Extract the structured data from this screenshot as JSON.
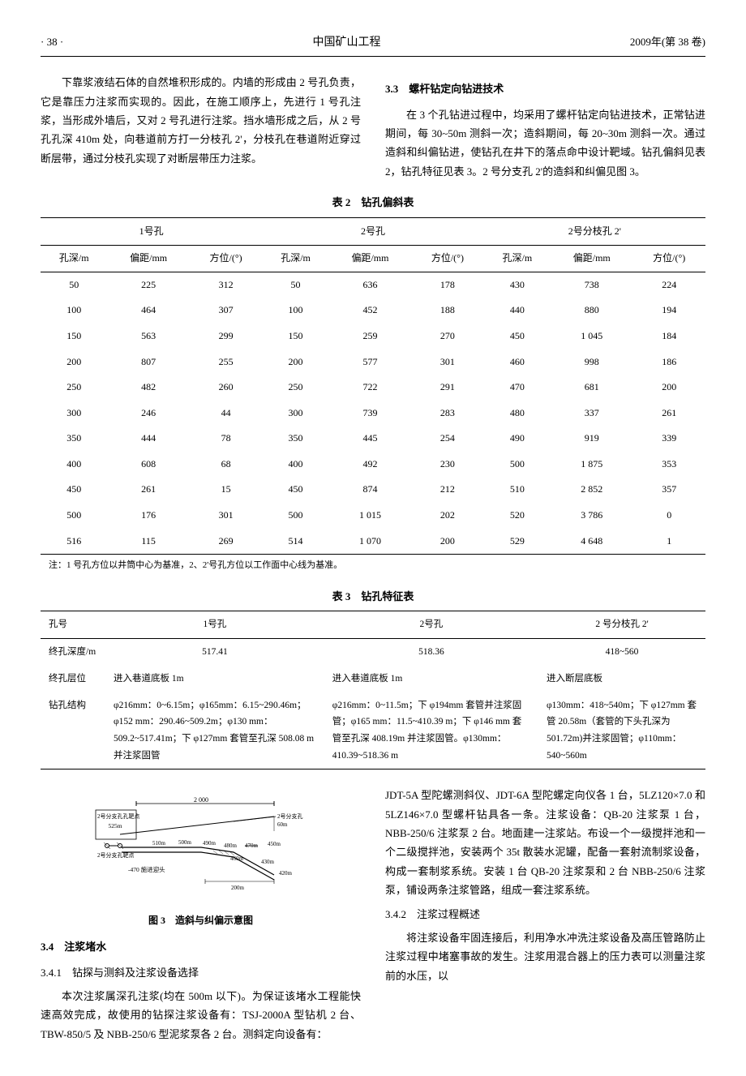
{
  "header": {
    "page_num": "· 38 ·",
    "journal": "中国矿山工程",
    "issue": "2009年(第 38 卷)"
  },
  "para_left": "下靠浆液结石体的自然堆积形成的。内墙的形成由 2 号孔负责，它是靠压力注浆而实现的。因此，在施工顺序上，先进行 1 号孔注浆，当形成外墙后，又对 2 号孔进行注浆。挡水墙形成之后，从 2 号孔孔深 410m 处，向巷道前方打一分枝孔 2'，分枝孔在巷道附近穿过断层带，通过分枝孔实现了对断层带压力注浆。",
  "sec33_title": "3.3　螺杆钻定向钻进技术",
  "para_right": "在 3 个孔钻进过程中，均采用了螺杆钻定向钻进技术，正常钻进期间，每 30~50m 测斜一次；造斜期间，每 20~30m 测斜一次。通过造斜和纠偏钻进，使钻孔在井下的落点命中设计靶域。钻孔偏斜见表 2，钻孔特征见表 3。2 号分支孔 2'的造斜和纠偏见图 3。",
  "table2": {
    "title": "表 2　钻孔偏斜表",
    "groups": [
      "1号孔",
      "2号孔",
      "2号分枝孔 2'"
    ],
    "subheaders": [
      "孔深/m",
      "偏距/mm",
      "方位/(°)",
      "孔深/m",
      "偏距/mm",
      "方位/(°)",
      "孔深/m",
      "偏距/mm",
      "方位/(°)"
    ],
    "rows": [
      [
        "50",
        "225",
        "312",
        "50",
        "636",
        "178",
        "430",
        "738",
        "224"
      ],
      [
        "100",
        "464",
        "307",
        "100",
        "452",
        "188",
        "440",
        "880",
        "194"
      ],
      [
        "150",
        "563",
        "299",
        "150",
        "259",
        "270",
        "450",
        "1 045",
        "184"
      ],
      [
        "200",
        "807",
        "255",
        "200",
        "577",
        "301",
        "460",
        "998",
        "186"
      ],
      [
        "250",
        "482",
        "260",
        "250",
        "722",
        "291",
        "470",
        "681",
        "200"
      ],
      [
        "300",
        "246",
        "44",
        "300",
        "739",
        "283",
        "480",
        "337",
        "261"
      ],
      [
        "350",
        "444",
        "78",
        "350",
        "445",
        "254",
        "490",
        "919",
        "339"
      ],
      [
        "400",
        "608",
        "68",
        "400",
        "492",
        "230",
        "500",
        "1 875",
        "353"
      ],
      [
        "450",
        "261",
        "15",
        "450",
        "874",
        "212",
        "510",
        "2 852",
        "357"
      ],
      [
        "500",
        "176",
        "301",
        "500",
        "1 015",
        "202",
        "520",
        "3 786",
        "0"
      ],
      [
        "516",
        "115",
        "269",
        "514",
        "1 070",
        "200",
        "529",
        "4 648",
        "1"
      ]
    ],
    "note": "注：1 号孔方位以井筒中心为基准，2、2'号孔方位以工作面中心线为基准。"
  },
  "table3": {
    "title": "表 3　钻孔特征表",
    "headers": [
      "孔号",
      "1号孔",
      "2号孔",
      "2 号分枝孔 2'"
    ],
    "rows": [
      [
        "终孔深度/m",
        "517.41",
        "518.36",
        "418~560"
      ],
      [
        "终孔层位",
        "进入巷道底板 1m",
        "进入巷道底板 1m",
        "进入断层底板"
      ],
      [
        "钻孔结构",
        "φ216mm：0~6.15m；φ165mm：6.15~290.46m；φ152 mm：290.46~509.2m；φ130 mm：509.2~517.41m；下 φ127mm 套管至孔深 508.08 m 并注浆固管",
        "φ216mm：0~11.5m；下 φ194mm 套管并注浆固管；φ165 mm：11.5~410.39 m；下 φ146 mm 套管至孔深 408.19m 并注浆固管。φ130mm：410.39~518.36 m",
        "φ130mm：418~540m；下 φ127mm 套管 20.58m（套管的下头孔深为 501.72m)并注浆固管；φ110mm：540~560m"
      ]
    ]
  },
  "fig3": {
    "caption": "图 3　造斜与纠偏示意图",
    "labels": {
      "l1": "2号分支孔孔靶点",
      "l2": "2号分支孔",
      "l3": "2号分支孔靶点",
      "l4": "-470 施进迎头",
      "d_top": "2 000",
      "d_525": "525m",
      "d_60": "60m",
      "d_510": "510m",
      "d_500": "500m",
      "d_490": "490m",
      "d_480": "480m",
      "d_470m": "470m",
      "d_450": "450m",
      "d_460": "460m",
      "d_430": "430m",
      "d_420": "420m",
      "d_200": "200m"
    }
  },
  "sec34_title": "3.4　注浆堵水",
  "sec341_title": "3.4.1　钻探与测斜及注浆设备选择",
  "para341": "本次注浆属深孔注浆(均在 500m 以下)。为保证该堵水工程能快速高效完成，故使用的钻探注浆设备有：TSJ-2000A 型钻机 2 台、TBW-850/5 及 NBB-250/6 型泥浆泵各 2 台。测斜定向设备有：",
  "para341b": "JDT-5A 型陀螺测斜仪、JDT-6A 型陀螺定向仪各 1 台，5LZ120×7.0 和 5LZ146×7.0 型螺杆钻具各一条。注浆设备：QB-20 注浆泵 1 台，NBB-250/6 注浆泵 2 台。地面建一注浆站。布设一个一级搅拌池和一个二级搅拌池，安装两个 35t 散装水泥罐，配备一套射流制浆设备，构成一套制浆系统。安装 1 台 QB-20 注浆泵和 2 台 NBB-250/6 注浆泵，铺设两条注浆管路，组成一套注浆系统。",
  "sec342_title": "3.4.2　注浆过程概述",
  "para342": "将注浆设备牢固连接后，利用净水冲洗注浆设备及高压管路防止注浆过程中堵塞事故的发生。注浆用混合器上的压力表可以测量注浆前的水压，以"
}
